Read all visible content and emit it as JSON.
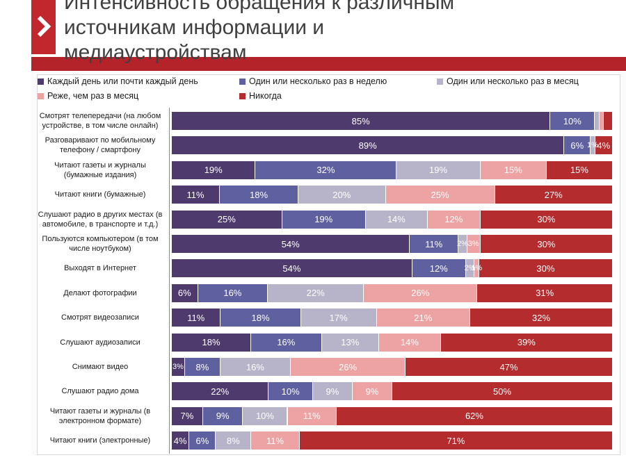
{
  "title_lines": [
    "Интенсивность обращения к различным",
    "источникам информации и",
    "медиаустройствам"
  ],
  "colors": {
    "accent": "#c1272d",
    "accent_bar": "#b32329"
  },
  "chart_data": {
    "type": "bar",
    "orientation": "horizontal",
    "stacked": true,
    "normalized_percent": true,
    "title": "Интенсивность обращения к различным источникам информации и медиаустройствам",
    "legend_position": "top",
    "xlim": [
      0,
      100
    ],
    "categories": [
      "Смотрят телепередачи (на любом устройстве, в том числе онлайн)",
      "Разговаривают по мобильному телефону / смартфону",
      "Читают газеты и журналы (бумажные издания)",
      "Читают книги (бумажные)",
      "Слушают радио в других местах (в автомобиле, в транспорте и т.д.)",
      "Пользуются компьютером (в том числе ноутбуком)",
      "Выходят в Интернет",
      "Делают фотографии",
      "Смотрят видеозаписи",
      "Слушают аудиозаписи",
      "Снимают видео",
      "Слушают радио дома",
      "Читают газеты и журналы (в электронном формате)",
      "Читают книги (электронные)"
    ],
    "series": [
      {
        "name": "Каждый день или почти каждый день",
        "color": "#4f3a6e",
        "label_color": "#ffffff",
        "values": [
          85,
          89,
          19,
          11,
          25,
          54,
          54,
          6,
          11,
          18,
          3,
          22,
          7,
          4
        ],
        "labels": [
          "85%",
          "89%",
          "19%",
          "11%",
          "25%",
          "54%",
          "54%",
          "6%",
          "11%",
          "18%",
          "3%",
          "22%",
          "7%",
          "4%"
        ]
      },
      {
        "name": "Один или несколько раз в неделю",
        "color": "#5f60a0",
        "label_color": "#ffffff",
        "values": [
          10,
          6,
          32,
          18,
          19,
          11,
          12,
          16,
          18,
          16,
          8,
          10,
          9,
          6
        ],
        "labels": [
          "10%",
          "6%",
          "32%",
          "18%",
          "19%",
          "11%",
          "12%",
          "16%",
          "18%",
          "16%",
          "8%",
          "10%",
          "9%",
          "6%"
        ]
      },
      {
        "name": "Один или несколько раз в месяц",
        "color": "#b7b3c9",
        "label_color": "#ffffff",
        "values": [
          1,
          1,
          19,
          20,
          14,
          2,
          2,
          22,
          17,
          13,
          16,
          9,
          10,
          8
        ],
        "labels": [
          "",
          "1%",
          "19%",
          "20%",
          "14%",
          "2%",
          "2%",
          "22%",
          "17%",
          "13%",
          "16%",
          "9%",
          "10%",
          "8%"
        ]
      },
      {
        "name": "Реже, чем раз в месяц",
        "color": "#eda3a3",
        "label_color": "#ffffff",
        "values": [
          1,
          0,
          15,
          25,
          12,
          3,
          1,
          26,
          21,
          14,
          26,
          9,
          11,
          11
        ],
        "labels": [
          "",
          "",
          "15%",
          "25%",
          "12%",
          "3%",
          "1%",
          "26%",
          "21%",
          "14%",
          "26%",
          "9%",
          "11%",
          "11%"
        ]
      },
      {
        "name": "Никогда",
        "color": "#b42c2e",
        "label_color": "#ffffff",
        "values": [
          2,
          4,
          15,
          27,
          30,
          30,
          30,
          31,
          32,
          39,
          47,
          50,
          62,
          71
        ],
        "labels": [
          "",
          "4%",
          "15%",
          "27%",
          "30%",
          "30%",
          "30%",
          "31%",
          "32%",
          "39%",
          "47%",
          "50%",
          "62%",
          "71%"
        ]
      }
    ]
  }
}
